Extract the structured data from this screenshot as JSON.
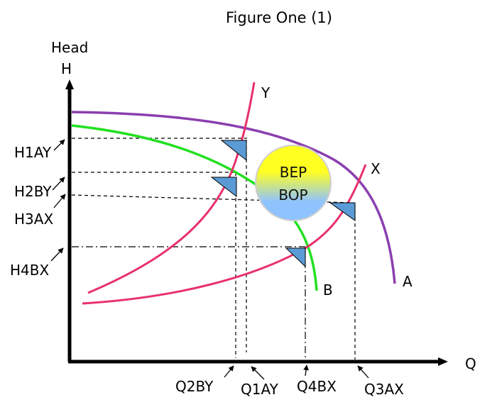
{
  "title": "Figure One  (1)",
  "y_axis": {
    "caption": "Head",
    "symbol": "H"
  },
  "x_axis": {
    "symbol": "Q"
  },
  "curves": {
    "pump_a": {
      "label": "A",
      "color": "#8b3fb0"
    },
    "pump_b": {
      "label": "B",
      "color": "#22e022"
    },
    "system_x": {
      "label": "X",
      "color": "#e8316b"
    },
    "system_y": {
      "label": "Y",
      "color": "#e8316b"
    }
  },
  "head_labels": [
    "H1AY",
    "H2BY",
    "H3AX",
    "H4BX"
  ],
  "flow_labels": [
    "Q2BY",
    "Q1AY",
    "Q4BX",
    "Q3AX"
  ],
  "bep": {
    "line1": "BEP",
    "line2": "BOP",
    "top_color": "#ffff22",
    "bottom_color": "#8fc3ff"
  },
  "marker_color": "#5b9bd5"
}
